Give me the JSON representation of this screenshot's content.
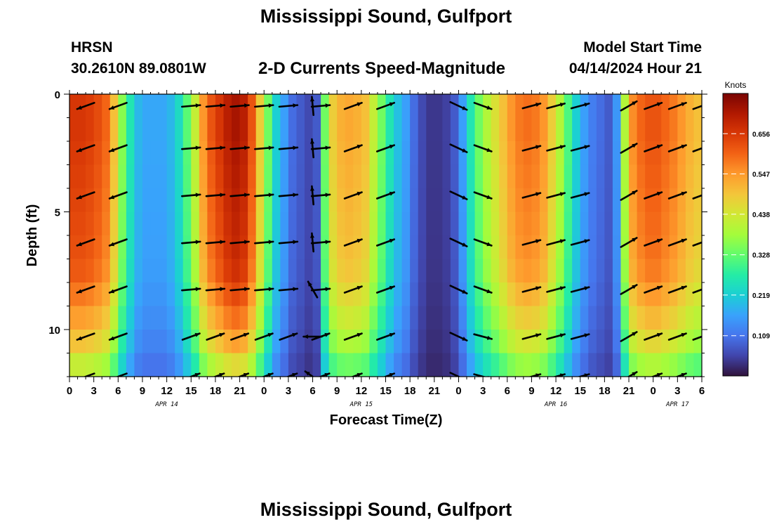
{
  "header": {
    "title": "Mississippi Sound, Gulfport",
    "station_id": "HRSN",
    "station_coords": "30.2610N  89.0801W",
    "plot_title": "2-D Currents Speed-Magnitude",
    "model_start_label": "Model Start Time",
    "model_start_value": "04/14/2024 Hour 21"
  },
  "footer": {
    "title": "Mississippi Sound, Gulfport"
  },
  "chart_data": {
    "type": "heatmap",
    "title": "2-D Currents Speed-Magnitude",
    "xlabel": "Forecast Time(Z)",
    "ylabel": "Depth (ft)",
    "x_hours_range": [
      0,
      78
    ],
    "x_ticks": [
      {
        "hour": 0,
        "label": "0"
      },
      {
        "hour": 3,
        "label": "3"
      },
      {
        "hour": 6,
        "label": "6"
      },
      {
        "hour": 9,
        "label": "9"
      },
      {
        "hour": 12,
        "label": "12"
      },
      {
        "hour": 15,
        "label": "15"
      },
      {
        "hour": 18,
        "label": "18"
      },
      {
        "hour": 21,
        "label": "21"
      },
      {
        "hour": 24,
        "label": "0"
      },
      {
        "hour": 27,
        "label": "3"
      },
      {
        "hour": 30,
        "label": "6"
      },
      {
        "hour": 33,
        "label": "9"
      },
      {
        "hour": 36,
        "label": "12"
      },
      {
        "hour": 39,
        "label": "15"
      },
      {
        "hour": 42,
        "label": "18"
      },
      {
        "hour": 45,
        "label": "21"
      },
      {
        "hour": 48,
        "label": "0"
      },
      {
        "hour": 51,
        "label": "3"
      },
      {
        "hour": 54,
        "label": "6"
      },
      {
        "hour": 57,
        "label": "9"
      },
      {
        "hour": 60,
        "label": "12"
      },
      {
        "hour": 63,
        "label": "15"
      },
      {
        "hour": 66,
        "label": "18"
      },
      {
        "hour": 69,
        "label": "21"
      },
      {
        "hour": 72,
        "label": "0"
      },
      {
        "hour": 75,
        "label": "3"
      },
      {
        "hour": 78,
        "label": "6"
      }
    ],
    "date_labels": [
      {
        "hour": 12,
        "label": "APR 14"
      },
      {
        "hour": 36,
        "label": "APR 15"
      },
      {
        "hour": 60,
        "label": "APR 16"
      },
      {
        "hour": 75,
        "label": "APR 17"
      }
    ],
    "y_range": [
      0,
      12
    ],
    "y_ticks": [
      0,
      5,
      10
    ],
    "y_inverted": true,
    "colorbar": {
      "unit": "Knots",
      "range": [
        0.0,
        0.765
      ],
      "ticks": [
        0.109,
        0.219,
        0.328,
        0.438,
        0.547,
        0.656
      ],
      "tick_labels": [
        "0.109",
        "0.219",
        "0.328",
        "0.438",
        "0.547",
        "0.656"
      ],
      "colormap": [
        "#30123b",
        "#4145ab",
        "#4675ed",
        "#39a2fc",
        "#1bcfd4",
        "#24eca6",
        "#61fc6c",
        "#a4fc3b",
        "#d1e834",
        "#f3c63a",
        "#fe9b2d",
        "#f36315",
        "#d93806",
        "#b11901",
        "#7a0402"
      ]
    },
    "column_hours": [
      0,
      1,
      2,
      3,
      4,
      5,
      6,
      7,
      8,
      9,
      10,
      11,
      12,
      13,
      14,
      15,
      16,
      17,
      18,
      19,
      20,
      21,
      22,
      23,
      24,
      25,
      26,
      27,
      28,
      29,
      30,
      31,
      32,
      33,
      34,
      35,
      36,
      37,
      38,
      39,
      40,
      41,
      42,
      43,
      44,
      45,
      46,
      47,
      48,
      49,
      50,
      51,
      52,
      53,
      54,
      55,
      56,
      57,
      58,
      59,
      60,
      61,
      62,
      63,
      64,
      65,
      66,
      67,
      68,
      69,
      70,
      71,
      72,
      73,
      74,
      75,
      76,
      77
    ],
    "surface_speed_knots": [
      0.66,
      0.66,
      0.65,
      0.63,
      0.6,
      0.5,
      0.36,
      0.26,
      0.19,
      0.17,
      0.17,
      0.17,
      0.19,
      0.24,
      0.32,
      0.42,
      0.55,
      0.62,
      0.66,
      0.7,
      0.72,
      0.7,
      0.62,
      0.48,
      0.34,
      0.22,
      0.16,
      0.1,
      0.08,
      0.06,
      0.08,
      0.34,
      0.48,
      0.52,
      0.53,
      0.52,
      0.5,
      0.42,
      0.34,
      0.26,
      0.2,
      0.16,
      0.1,
      0.06,
      0.04,
      0.04,
      0.05,
      0.08,
      0.16,
      0.26,
      0.34,
      0.4,
      0.45,
      0.5,
      0.55,
      0.58,
      0.59,
      0.58,
      0.55,
      0.48,
      0.4,
      0.31,
      0.22,
      0.16,
      0.12,
      0.1,
      0.08,
      0.15,
      0.4,
      0.56,
      0.6,
      0.62,
      0.62,
      0.6,
      0.58,
      0.55,
      0.52,
      0.5
    ],
    "depth_rows_ft": [
      0.5,
      1.5,
      2.5,
      3.5,
      4.5,
      5.5,
      6.5,
      7.5,
      8.5,
      9.5,
      10.5,
      11.5
    ],
    "depth_factor": [
      1.0,
      1.0,
      0.99,
      0.98,
      0.97,
      0.96,
      0.95,
      0.93,
      0.88,
      0.82,
      0.75,
      0.64
    ],
    "vector_depths_ft": [
      0.5,
      2.3,
      4.3,
      6.3,
      8.3,
      10.3,
      12.0
    ],
    "vector_times_hours": [
      2,
      6,
      15,
      18,
      21,
      24,
      27,
      31,
      35,
      39,
      48,
      51,
      57,
      60,
      63,
      69,
      72,
      75,
      78
    ],
    "vector_angles_deg": [
      200,
      200,
      5,
      5,
      5,
      5,
      5,
      5,
      20,
      20,
      335,
      340,
      15,
      15,
      15,
      30,
      20,
      20,
      20
    ],
    "vector_angles_deep_deg": [
      200,
      200,
      20,
      20,
      20,
      20,
      20,
      20,
      20,
      20,
      335,
      345,
      15,
      15,
      15,
      30,
      20,
      20,
      20
    ],
    "vector_near_zero_time_hours": 30,
    "vector_near_zero_angles_deg": [
      95,
      95,
      95,
      95,
      120,
      180,
      145
    ]
  }
}
